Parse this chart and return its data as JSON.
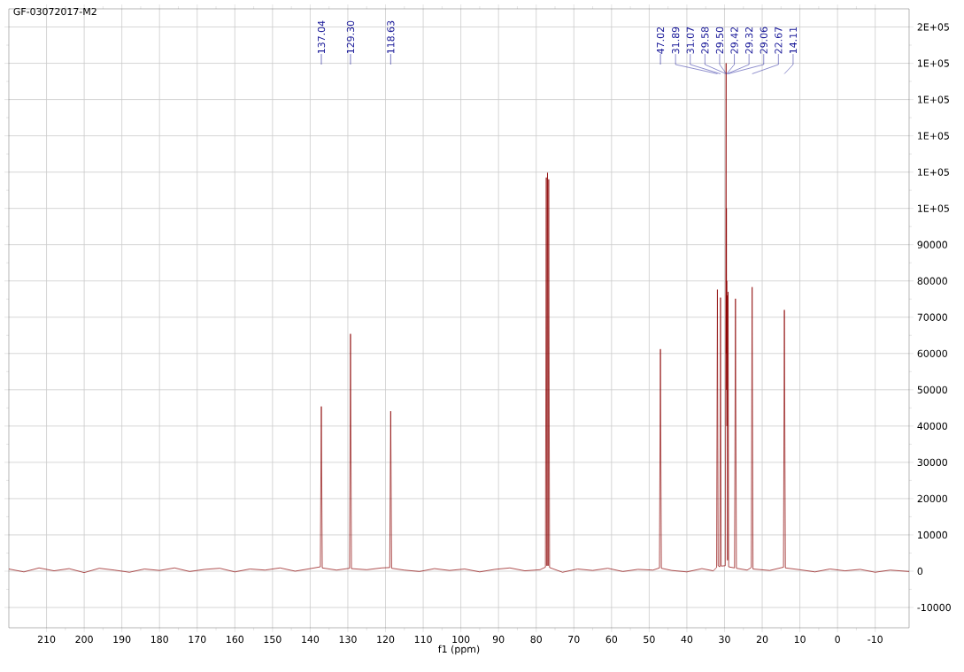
{
  "chart_data": {
    "type": "line",
    "title": "GF-03072017-M2",
    "xlabel": "f1 (ppm)",
    "x": [
      220,
      216,
      212,
      208,
      204,
      200,
      196,
      192,
      188,
      184,
      180,
      176,
      172,
      168,
      164,
      160,
      156,
      152,
      148,
      144,
      140,
      137.3,
      137.04,
      136.8,
      133,
      129.55,
      129.3,
      129.05,
      125,
      121,
      118.88,
      118.63,
      118.38,
      115,
      111,
      107,
      103,
      99,
      95,
      91,
      87,
      83,
      79,
      77.55,
      77.32,
      77.16,
      77.0,
      76.84,
      76.68,
      76.45,
      73,
      69,
      65,
      61,
      57,
      53,
      49,
      47.27,
      47.02,
      46.77,
      44,
      40,
      36,
      33,
      32.1,
      31.89,
      31.7,
      31.25,
      31.07,
      30.9,
      29.8,
      29.58,
      29.54,
      29.5,
      29.46,
      29.42,
      29.37,
      29.32,
      29.2,
      29.06,
      28.9,
      27.35,
      27.1,
      26.85,
      24,
      22.9,
      22.67,
      22.45,
      18,
      14.35,
      14.11,
      13.85,
      10,
      6,
      2,
      -2,
      -6,
      -10,
      -14,
      -19
    ],
    "series": [
      {
        "color": "#8b0000",
        "values": [
          600,
          -200,
          900,
          100,
          700,
          -400,
          800,
          300,
          -300,
          600,
          200,
          900,
          -100,
          500,
          800,
          -200,
          600,
          300,
          900,
          0,
          700,
          1200,
          45400,
          900,
          300,
          800,
          65400,
          700,
          400,
          900,
          1000,
          44100,
          800,
          300,
          -100,
          700,
          200,
          600,
          -200,
          500,
          900,
          100,
          400,
          1100,
          108500,
          1500,
          109800,
          1500,
          108000,
          1000,
          -300,
          600,
          200,
          800,
          -100,
          500,
          300,
          900,
          61200,
          800,
          200,
          -200,
          700,
          100,
          1000,
          77600,
          1500,
          1200,
          75400,
          1400,
          1500,
          140000,
          60000,
          100000,
          50000,
          80000,
          40000,
          76000,
          3000,
          77000,
          1200,
          900,
          75100,
          800,
          300,
          1000,
          78300,
          600,
          200,
          1100,
          72000,
          900,
          400,
          -200,
          600,
          100,
          500,
          -300,
          300,
          -100
        ]
      }
    ],
    "xlim": [
      220,
      -19
    ],
    "ylim": [
      -15600,
      155000
    ],
    "xticks": [
      210,
      200,
      190,
      180,
      170,
      160,
      150,
      140,
      130,
      120,
      110,
      100,
      90,
      80,
      70,
      60,
      50,
      40,
      30,
      20,
      10,
      0,
      -10
    ],
    "yticks": [
      -10000,
      0,
      10000,
      20000,
      30000,
      40000,
      50000,
      60000,
      70000,
      80000,
      90000,
      {
        "value": 100000,
        "label": "1E+05"
      },
      {
        "value": 110000,
        "label": "1E+05"
      },
      {
        "value": 120000,
        "label": "1E+05"
      },
      {
        "value": 130000,
        "label": "1E+05"
      },
      {
        "value": 140000,
        "label": "1E+05"
      },
      {
        "value": 150000,
        "label": "2E+05"
      }
    ],
    "grid": true,
    "annotations": [
      {
        "text": "137.04",
        "x": 137.04
      },
      {
        "text": "129.30",
        "x": 129.3
      },
      {
        "text": "118.63",
        "x": 118.63
      },
      {
        "text": "47.02",
        "x": 47.02
      },
      {
        "text": "31.89",
        "x": 31.89
      },
      {
        "text": "31.07",
        "x": 31.07
      },
      {
        "text": "29.58",
        "x": 29.58
      },
      "29.50",
      {
        "text": "29.42",
        "x": 29.42
      },
      {
        "text": "29.32",
        "x": 29.32
      },
      {
        "text": "29.06",
        "x": 29.06
      },
      {
        "text": "22.67",
        "x": 22.67
      },
      {
        "text": "14.11",
        "x": 14.11
      }
    ]
  }
}
